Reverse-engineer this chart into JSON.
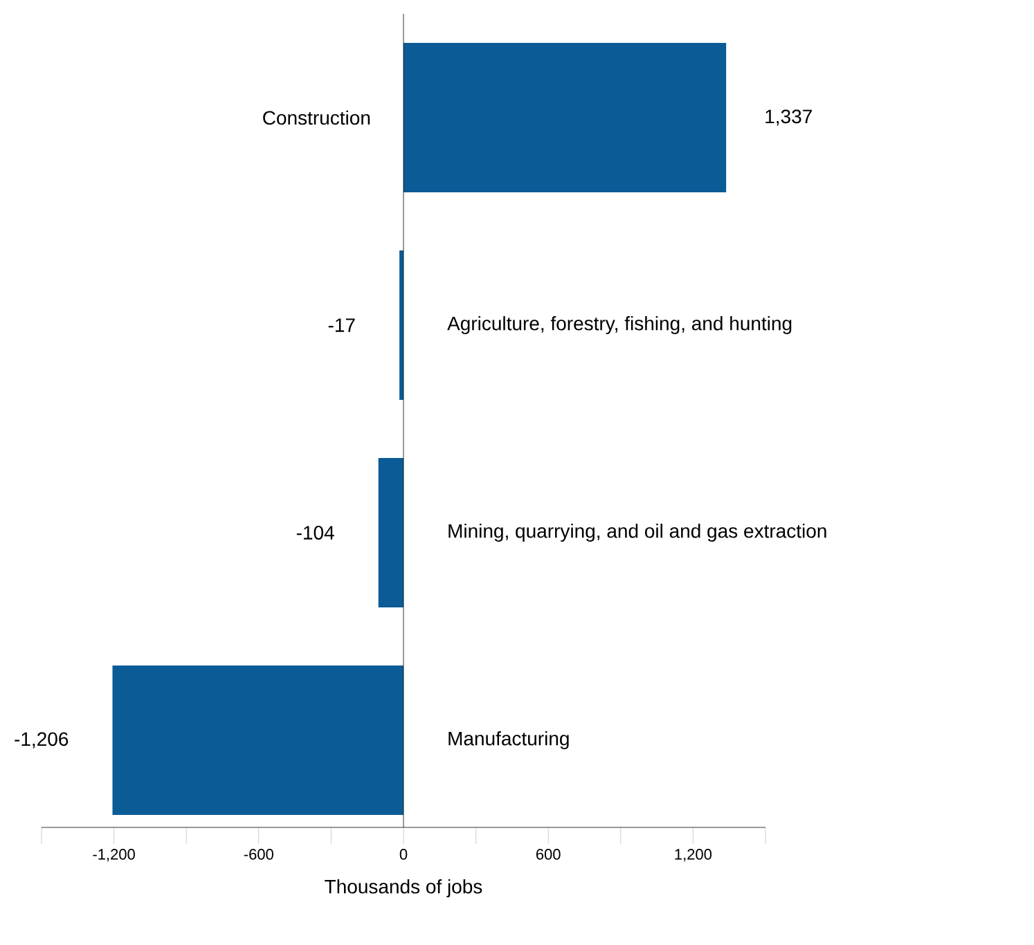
{
  "chart_data": {
    "type": "bar",
    "orientation": "horizontal",
    "xlabel": "Thousands of jobs",
    "categories": [
      "Construction",
      "Agriculture, forestry, fishing, and hunting",
      "Mining, quarrying, and oil and gas extraction",
      "Manufacturing"
    ],
    "values": [
      1337,
      -17,
      -104,
      -1206
    ],
    "value_labels": [
      "1,337",
      "-17",
      "-104",
      "-1,206"
    ],
    "color": "#0b5b97",
    "xlim": [
      -1500,
      1500
    ],
    "xticks": [
      {
        "value": -1500,
        "label": null
      },
      {
        "value": -1200,
        "label": "-1,200"
      },
      {
        "value": -900,
        "label": null
      },
      {
        "value": -600,
        "label": "-600"
      },
      {
        "value": -300,
        "label": null
      },
      0,
      {
        "value": 300,
        "label": null
      },
      600,
      {
        "value": 900,
        "label": null
      },
      {
        "value": 1200,
        "label": "1,200"
      },
      {
        "value": 1500,
        "label": null
      }
    ]
  }
}
